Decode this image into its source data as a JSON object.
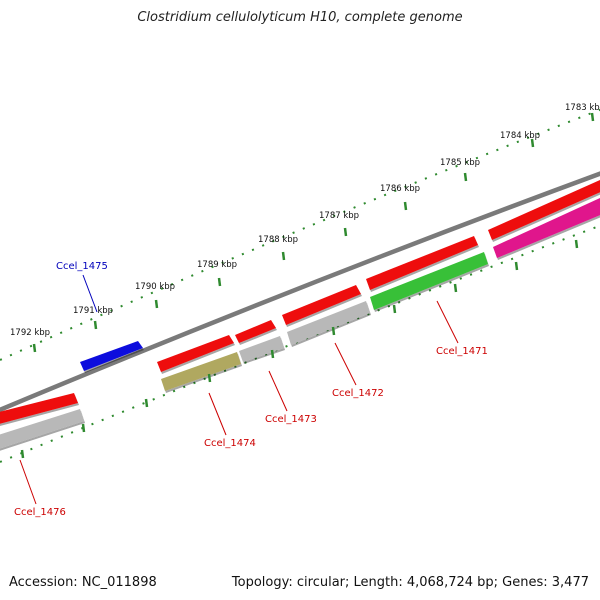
{
  "title": "Clostridium cellulolyticum H10, complete genome",
  "accession": "Accession: NC_011898",
  "summary": "Topology: circular; Length: 4,068,724 bp; Genes: 3,477",
  "colors": {
    "backbone": "#7a7a7a",
    "tick": "#2f8a2f",
    "tick_label": "#111111",
    "label_red": "#cc0000",
    "label_blue": "#0000bb",
    "cds_red": "#ee1111",
    "cds_blue": "#1010dd",
    "cds_grey": "#b8b8b8",
    "cds_olive": "#b0a860",
    "cds_green": "#38c038",
    "cds_magenta": "#e0148c"
  },
  "ticks": [
    {
      "label": "1783 kbp"
    },
    {
      "label": "1784 kbp"
    },
    {
      "label": "1785 kbp"
    },
    {
      "label": "1786 kbp"
    },
    {
      "label": "1787 kbp"
    },
    {
      "label": "1788 kbp"
    },
    {
      "label": "1789 kbp"
    },
    {
      "label": "1790 kbp"
    },
    {
      "label": "1791 kbp"
    },
    {
      "label": "1792 kbp"
    }
  ],
  "features": [
    {
      "color": "cds_blue"
    },
    {
      "color": "cds_red"
    },
    {
      "color": "cds_red"
    },
    {
      "color": "cds_red"
    },
    {
      "color": "cds_red"
    },
    {
      "color": "cds_red"
    },
    {
      "color": "cds_red"
    },
    {
      "color": "cds_grey"
    },
    {
      "color": "cds_olive"
    },
    {
      "color": "cds_grey"
    },
    {
      "color": "cds_grey"
    },
    {
      "color": "cds_green"
    },
    {
      "color": "cds_magenta"
    }
  ],
  "gene_labels": [
    {
      "text": "Ccel_1475",
      "color": "label_blue"
    },
    {
      "text": "Ccel_1471",
      "color": "label_red"
    },
    {
      "text": "Ccel_1472",
      "color": "label_red"
    },
    {
      "text": "Ccel_1473",
      "color": "label_red"
    },
    {
      "text": "Ccel_1474",
      "color": "label_red"
    },
    {
      "text": "Ccel_1476",
      "color": "label_red"
    }
  ]
}
